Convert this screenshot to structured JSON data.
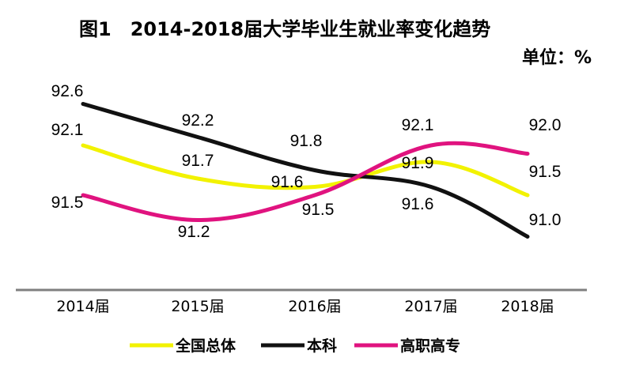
{
  "chart_data": {
    "type": "line",
    "title": "图1　2014-2018届大学毕业生就业率变化趋势",
    "unit_label": "单位：%",
    "categories": [
      "2014届",
      "2015届",
      "2016届",
      "2017届",
      "2018届"
    ],
    "series": [
      {
        "name": "全国总体",
        "color": "#f2f200",
        "values": [
          92.1,
          91.7,
          91.6,
          91.9,
          91.5
        ]
      },
      {
        "name": "本科",
        "color": "#111111",
        "values": [
          92.6,
          92.2,
          91.8,
          91.6,
          91.0
        ]
      },
      {
        "name": "高职高专",
        "color": "#e0137f",
        "values": [
          91.5,
          91.2,
          91.5,
          92.1,
          92.0
        ]
      }
    ],
    "legend_position": "bottom",
    "grid": false
  }
}
